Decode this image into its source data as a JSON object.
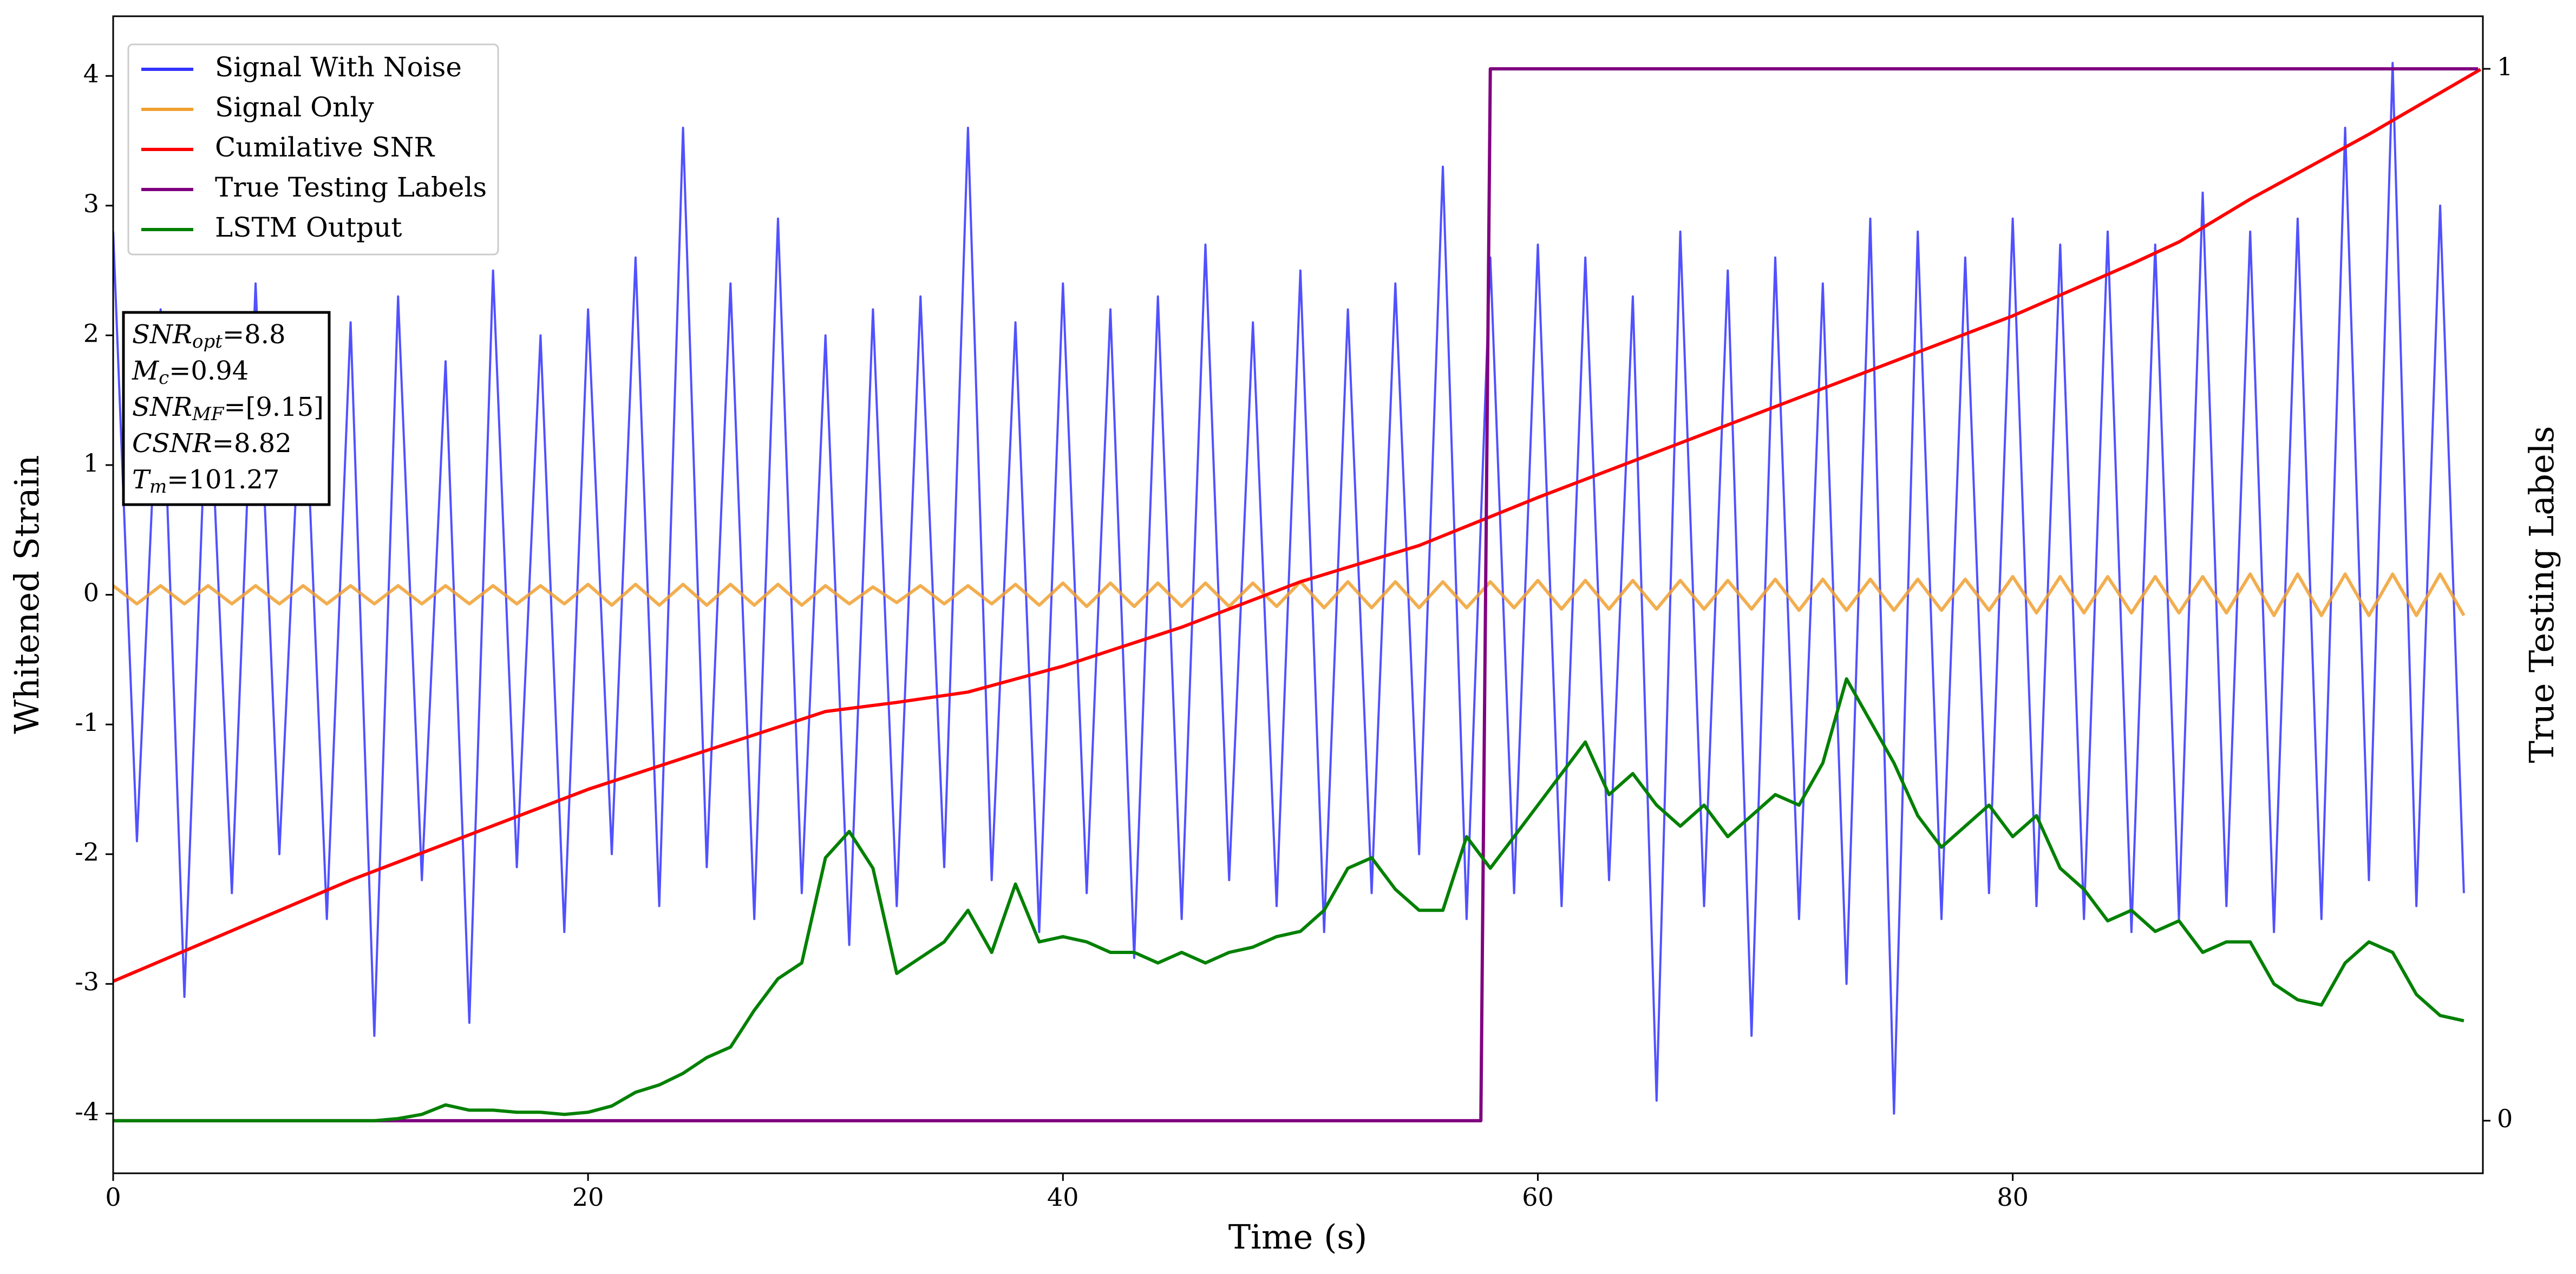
{
  "chart_data": {
    "type": "line",
    "xlabel": "Time (s)",
    "ylabel": "Whitened Strain",
    "y2label": "True Testing Labels",
    "xlim": [
      0,
      99.8
    ],
    "ylim": [
      -4.46,
      4.46
    ],
    "y2lim": [
      -0.05,
      1.05
    ],
    "xticks": [
      0,
      20,
      40,
      60,
      80
    ],
    "yticks": [
      -4,
      -3,
      -2,
      -1,
      0,
      1,
      2,
      3,
      4
    ],
    "y2ticks": [
      0,
      1
    ],
    "legend": "upper left",
    "x": [
      0,
      1,
      2,
      3,
      4,
      5,
      6,
      7,
      8,
      9,
      10,
      11,
      12,
      13,
      14,
      15,
      16,
      17,
      18,
      19,
      20,
      21,
      22,
      23,
      24,
      25,
      26,
      27,
      28,
      29,
      30,
      31,
      32,
      33,
      34,
      35,
      36,
      37,
      38,
      39,
      40,
      41,
      42,
      43,
      44,
      45,
      46,
      47,
      48,
      49,
      50,
      51,
      52,
      53,
      54,
      55,
      56,
      57,
      58,
      59,
      60,
      61,
      62,
      63,
      64,
      65,
      66,
      67,
      68,
      69,
      70,
      71,
      72,
      73,
      74,
      75,
      76,
      77,
      78,
      79,
      80,
      81,
      82,
      83,
      84,
      85,
      86,
      87,
      88,
      89,
      90,
      91,
      92,
      93,
      94,
      95,
      96,
      97,
      98,
      99
    ],
    "series": [
      {
        "name": "Signal With Noise",
        "color": "#3333ff",
        "values": [
          2.8,
          -1.9,
          2.2,
          -3.1,
          1.9,
          -2.3,
          2.4,
          -2.0,
          2.0,
          -2.5,
          2.1,
          -3.4,
          2.3,
          -2.2,
          1.8,
          -3.3,
          2.5,
          -2.1,
          2.0,
          -2.6,
          2.2,
          -2.0,
          2.6,
          -2.4,
          3.6,
          -2.1,
          2.4,
          -2.5,
          2.9,
          -2.3,
          2.0,
          -2.7,
          2.2,
          -2.4,
          2.3,
          -2.1,
          3.6,
          -2.2,
          2.1,
          -2.6,
          2.4,
          -2.3,
          2.2,
          -2.8,
          2.3,
          -2.5,
          2.7,
          -2.2,
          2.1,
          -2.4,
          2.5,
          -2.6,
          2.2,
          -2.3,
          2.4,
          -2.0,
          3.3,
          -2.5,
          2.6,
          -2.3,
          2.7,
          -2.4,
          2.6,
          -2.2,
          2.3,
          -3.9,
          2.8,
          -2.4,
          2.5,
          -3.4,
          2.6,
          -2.5,
          2.4,
          -3.0,
          2.9,
          -4.0,
          2.8,
          -2.5,
          2.6,
          -2.3,
          2.9,
          -2.4,
          2.7,
          -2.5,
          2.8,
          -2.6,
          2.7,
          -2.5,
          3.1,
          -2.4,
          2.8,
          -2.6,
          2.9,
          -2.5,
          3.6,
          -2.2,
          4.1,
          -2.4,
          3.0,
          -2.3
        ]
      },
      {
        "name": "Signal Only",
        "color": "#f0a030",
        "values": [
          0.07,
          -0.07,
          0.07,
          -0.07,
          0.07,
          -0.07,
          0.07,
          -0.07,
          0.07,
          -0.07,
          0.07,
          -0.07,
          0.07,
          -0.07,
          0.07,
          -0.07,
          0.07,
          -0.07,
          0.07,
          -0.07,
          0.08,
          -0.08,
          0.08,
          -0.08,
          0.08,
          -0.08,
          0.08,
          -0.08,
          0.08,
          -0.08,
          0.07,
          -0.07,
          0.06,
          -0.06,
          0.07,
          -0.07,
          0.07,
          -0.07,
          0.08,
          -0.08,
          0.09,
          -0.09,
          0.09,
          -0.09,
          0.09,
          -0.09,
          0.09,
          -0.09,
          0.09,
          -0.09,
          0.1,
          -0.1,
          0.1,
          -0.1,
          0.1,
          -0.1,
          0.1,
          -0.1,
          0.1,
          -0.1,
          0.11,
          -0.11,
          0.11,
          -0.11,
          0.11,
          -0.11,
          0.11,
          -0.11,
          0.11,
          -0.11,
          0.12,
          -0.12,
          0.12,
          -0.12,
          0.12,
          -0.12,
          0.12,
          -0.12,
          0.12,
          -0.12,
          0.14,
          -0.14,
          0.14,
          -0.14,
          0.14,
          -0.14,
          0.14,
          -0.14,
          0.14,
          -0.14,
          0.16,
          -0.16,
          0.16,
          -0.16,
          0.16,
          -0.16,
          0.16,
          -0.16,
          0.16,
          -0.16
        ]
      },
      {
        "name": "Cumilative SNR",
        "color": "#ff0000",
        "x": [
          0,
          10,
          20,
          30,
          33,
          36,
          40,
          45,
          50,
          55,
          60,
          65,
          70,
          75,
          80,
          85,
          87,
          90,
          95,
          99.7
        ],
        "values": [
          -2.98,
          -2.2,
          -1.5,
          -0.9,
          -0.83,
          -0.75,
          -0.55,
          -0.25,
          0.1,
          0.38,
          0.75,
          1.1,
          1.45,
          1.8,
          2.15,
          2.55,
          2.72,
          3.05,
          3.55,
          4.05
        ]
      },
      {
        "name": "True Testing Labels",
        "color": "#800080",
        "axis": "y2",
        "x": [
          0,
          57.6,
          58,
          99.6
        ],
        "values": [
          0,
          0,
          1,
          1
        ]
      },
      {
        "name": "LSTM Output",
        "color": "#008000",
        "axis": "y2",
        "values": [
          0,
          0,
          0,
          0,
          0,
          0,
          0,
          0,
          0,
          0,
          0,
          0,
          0.002,
          0.006,
          0.015,
          0.01,
          0.01,
          0.008,
          0.008,
          0.006,
          0.008,
          0.014,
          0.027,
          0.034,
          0.045,
          0.06,
          0.07,
          0.105,
          0.135,
          0.15,
          0.25,
          0.275,
          0.24,
          0.14,
          0.155,
          0.17,
          0.2,
          0.16,
          0.225,
          0.17,
          0.175,
          0.17,
          0.16,
          0.16,
          0.15,
          0.16,
          0.15,
          0.16,
          0.165,
          0.175,
          0.18,
          0.2,
          0.24,
          0.25,
          0.22,
          0.2,
          0.2,
          0.27,
          0.24,
          0.27,
          0.3,
          0.33,
          0.36,
          0.31,
          0.33,
          0.3,
          0.28,
          0.3,
          0.27,
          0.29,
          0.31,
          0.3,
          0.34,
          0.42,
          0.38,
          0.34,
          0.29,
          0.26,
          0.28,
          0.3,
          0.27,
          0.29,
          0.24,
          0.22,
          0.19,
          0.2,
          0.18,
          0.19,
          0.16,
          0.17,
          0.17,
          0.13,
          0.115,
          0.11,
          0.15,
          0.17,
          0.16,
          0.12,
          0.1,
          0.095
        ]
      }
    ],
    "annotation": [
      {
        "text": "SNR",
        "sub": "opt",
        "rest": "=8.8"
      },
      {
        "text": "M",
        "sub": "c",
        "rest": "=0.94"
      },
      {
        "text": "SNR",
        "sub": "MF",
        "rest": "=[9.15]"
      },
      {
        "text": "CSNR",
        "sub": "",
        "rest": "=8.82"
      },
      {
        "text": "T",
        "sub": "m",
        "rest": "=101.27"
      }
    ]
  }
}
